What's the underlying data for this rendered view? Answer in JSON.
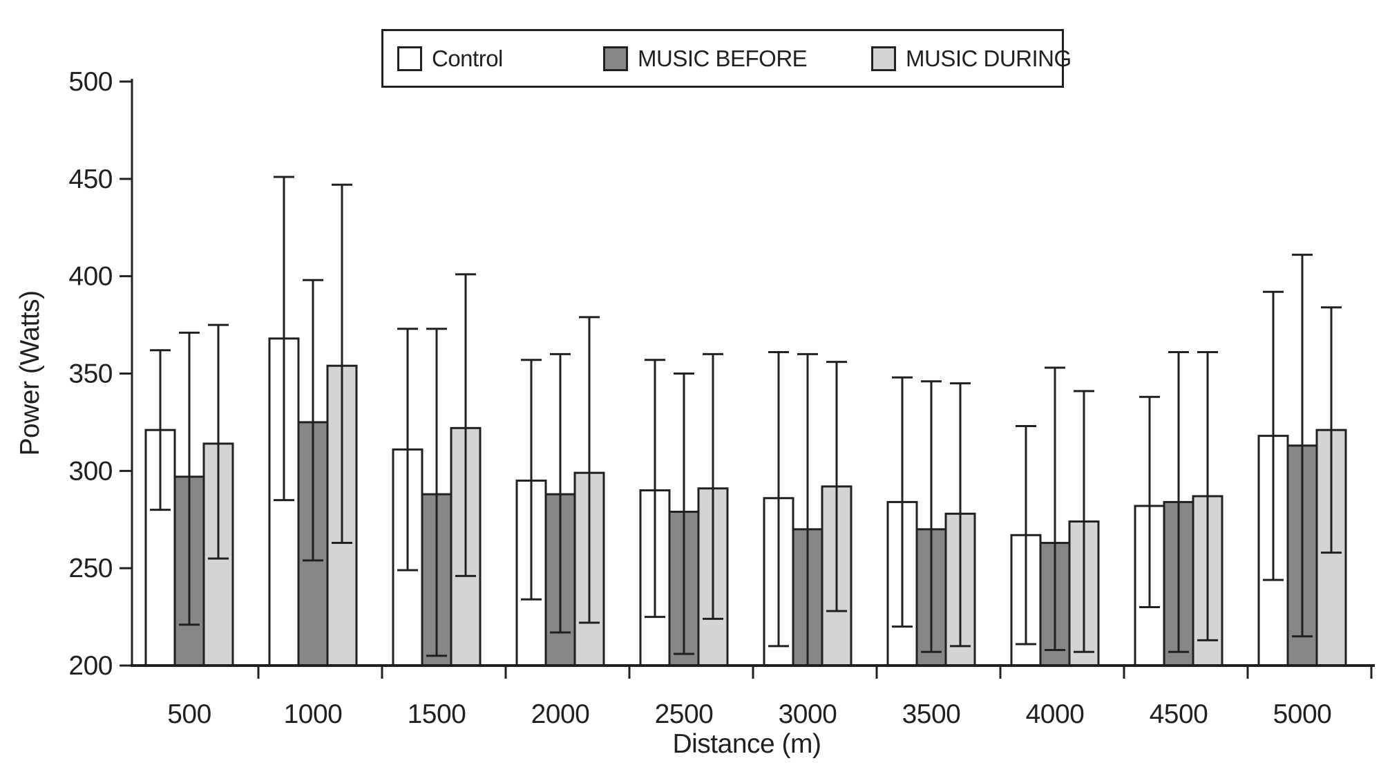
{
  "figure": {
    "ylabel": "Power (Watts)",
    "xlabel": "Distance (m)"
  },
  "colors": {
    "ink": "#231f20",
    "background": "#ffffff",
    "control_fill": "#ffffff",
    "before_fill": "#878787",
    "during_fill": "#d4d4d4"
  },
  "chart_data": {
    "type": "bar",
    "title": "",
    "xlabel": "Distance (m)",
    "ylabel": "Power (Watts)",
    "ylim": [
      200,
      500
    ],
    "yticks": [
      200,
      250,
      300,
      350,
      400,
      450,
      500
    ],
    "grid": false,
    "legend_position": "top-center",
    "error_bars": "symmetric caps, drawn over bars",
    "categories": [
      "500",
      "1000",
      "1500",
      "2000",
      "2500",
      "3000",
      "3500",
      "4000",
      "4500",
      "5000"
    ],
    "series": [
      {
        "name": "Control",
        "color": "#ffffff",
        "values": [
          321,
          368,
          311,
          295,
          290,
          286,
          284,
          267,
          282,
          318
        ],
        "err_hi": [
          362,
          451,
          373,
          357,
          357,
          361,
          348,
          323,
          338,
          392
        ],
        "err_lo": [
          280,
          285,
          249,
          234,
          225,
          210,
          220,
          211,
          230,
          244
        ]
      },
      {
        "name": "MUSIC BEFORE",
        "color": "#878787",
        "values": [
          297,
          325,
          288,
          288,
          279,
          270,
          270,
          263,
          284,
          313
        ],
        "err_hi": [
          371,
          398,
          373,
          360,
          350,
          360,
          346,
          353,
          361,
          411
        ],
        "err_lo": [
          221,
          254,
          205,
          217,
          206,
          200,
          207,
          208,
          207,
          215
        ]
      },
      {
        "name": "MUSIC DURING",
        "color": "#d4d4d4",
        "values": [
          314,
          354,
          322,
          299,
          291,
          292,
          278,
          274,
          287,
          321
        ],
        "err_hi": [
          375,
          447,
          401,
          379,
          360,
          356,
          345,
          341,
          361,
          384
        ],
        "err_lo": [
          255,
          263,
          246,
          222,
          224,
          228,
          210,
          207,
          213,
          258
        ]
      }
    ]
  }
}
